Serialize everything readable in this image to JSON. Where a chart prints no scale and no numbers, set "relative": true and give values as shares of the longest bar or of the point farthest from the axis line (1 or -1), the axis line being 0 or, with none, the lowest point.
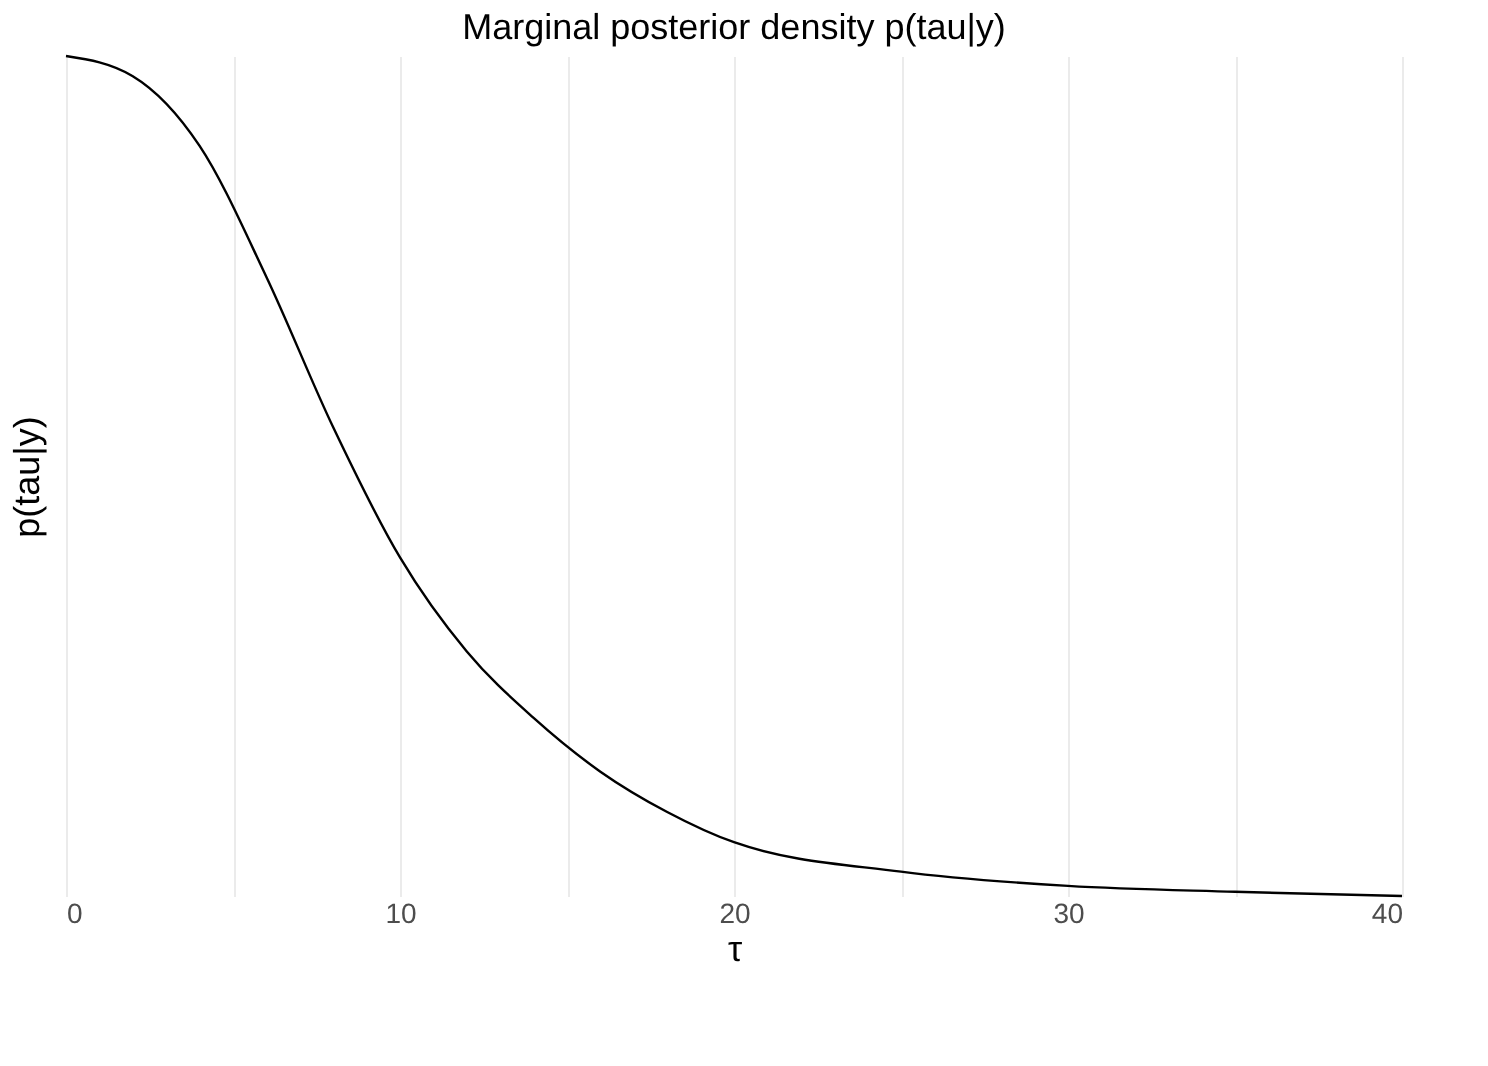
{
  "chart_data": {
    "type": "line",
    "title": "Marginal posterior density p(tau|y)",
    "xlabel": "τ",
    "ylabel": "p(tau|y)",
    "relative": true,
    "x": [
      0,
      2,
      4,
      6,
      8,
      10,
      12,
      14,
      16,
      18,
      20,
      25,
      30,
      35,
      40
    ],
    "series": [
      {
        "color": "#000000",
        "values": [
          1,
          0.976,
          0.893,
          0.737,
          0.558,
          0.403,
          0.291,
          0.212,
          0.148,
          0.1,
          0.064,
          0.029,
          0.012,
          0.005,
          0
        ]
      }
    ],
    "xlim": [
      0,
      40
    ],
    "xticks": [
      0,
      {
        "value": 5,
        "label": null
      },
      10,
      {
        "value": 15,
        "label": null
      },
      20,
      {
        "value": 25,
        "label": null
      },
      30,
      {
        "value": 35,
        "label": null
      },
      40
    ],
    "grid": "x",
    "marker": "none",
    "line_style": "solid"
  }
}
